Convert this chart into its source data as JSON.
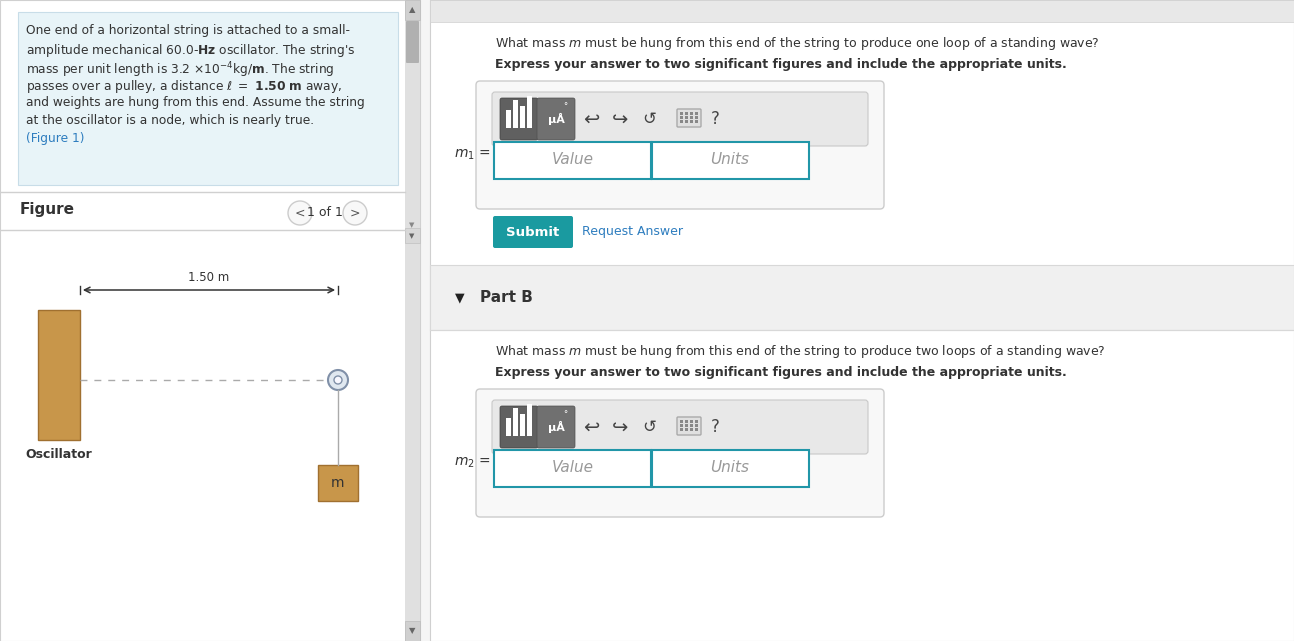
{
  "bg_color": "#f5f5f5",
  "left_panel_bg": "#ffffff",
  "left_panel_text_bg": "#e8f4f8",
  "figure_label": "Figure",
  "nav_text": "1 of 1",
  "distance_label": "1.50 m",
  "oscillator_label": "Oscillator",
  "mass_label": "m",
  "right_panel_bg": "#ffffff",
  "part_a_question": "What mass $m$ must be hung from this end of the string to produce one loop of a standing wave?",
  "part_a_bold": "Express your answer to two significant figures and include the appropriate units.",
  "part_b_label": "Part B",
  "part_b_question": "What mass $m$ must be hung from this end of the string to produce two loops of a standing wave?",
  "part_b_bold": "Express your answer to two significant figures and include the appropriate units.",
  "m1_label": "$m_1$ =",
  "m2_label": "$m_2$ =",
  "value_placeholder": "Value",
  "units_placeholder": "Units",
  "submit_text": "Submit",
  "request_answer_text": "Request Answer",
  "submit_bg": "#1a9aa0",
  "toolbar_bg": "#e8e8e8",
  "input_bg": "#ffffff",
  "oscillator_color": "#c8964a",
  "mass_color": "#c8964a",
  "string_color": "#999999",
  "text_color": "#333333",
  "link_color": "#2e7dbf",
  "scrollbar_color": "#c0c0c0",
  "part_b_section_bg": "#f0f0f0"
}
